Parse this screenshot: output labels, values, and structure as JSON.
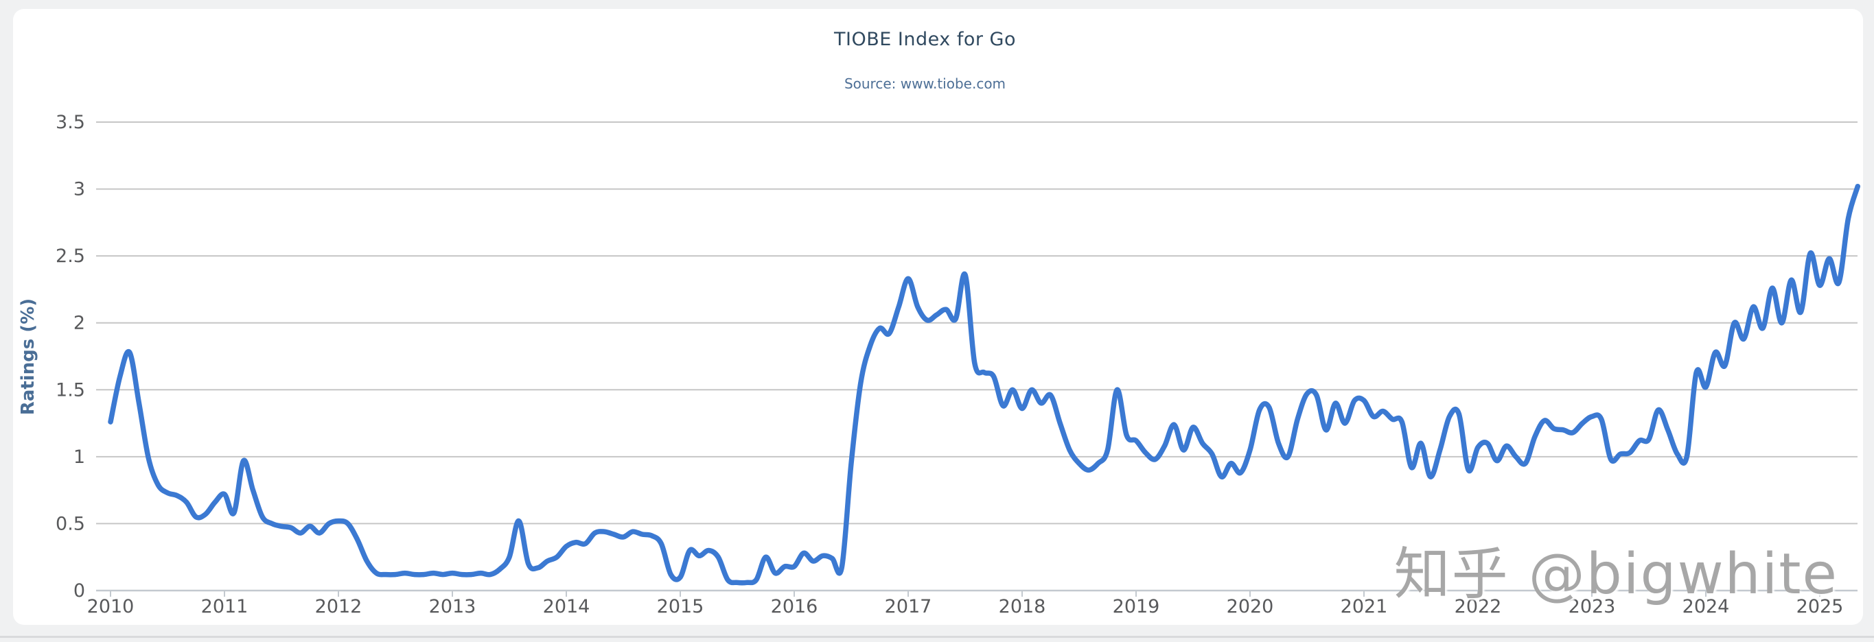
{
  "watermark": "知乎 @bigwhite",
  "chart_data": {
    "type": "line",
    "title": "TIOBE Index for Go",
    "subtitle": "Source: www.tiobe.com",
    "xlabel": "",
    "ylabel": "Ratings (%)",
    "legend": "none",
    "grid": true,
    "ylim": [
      0,
      3.5
    ],
    "xlim": [
      2009.87,
      2025.37
    ],
    "x_ticks": [
      2010,
      2011,
      2012,
      2013,
      2014,
      2015,
      2016,
      2017,
      2018,
      2019,
      2020,
      2021,
      2022,
      2023,
      2024,
      2025
    ],
    "y_ticks": [
      0,
      0.5,
      1,
      1.5,
      2,
      2.5,
      3,
      3.5
    ],
    "y_tick_labels": [
      "0",
      "0.5",
      "1",
      "1.5",
      "2",
      "2.5",
      "3",
      "3.5"
    ],
    "series": [
      {
        "name": "Go",
        "color": "#3b79d2",
        "start_year": 2010,
        "interval_months": 1,
        "values": [
          1.26,
          1.6,
          1.78,
          1.4,
          0.99,
          0.79,
          0.73,
          0.71,
          0.66,
          0.55,
          0.57,
          0.66,
          0.72,
          0.58,
          0.97,
          0.75,
          0.55,
          0.5,
          0.48,
          0.47,
          0.43,
          0.48,
          0.43,
          0.5,
          0.52,
          0.5,
          0.38,
          0.22,
          0.13,
          0.12,
          0.12,
          0.13,
          0.12,
          0.12,
          0.13,
          0.12,
          0.13,
          0.12,
          0.12,
          0.13,
          0.12,
          0.16,
          0.25,
          0.52,
          0.2,
          0.17,
          0.22,
          0.25,
          0.33,
          0.36,
          0.35,
          0.43,
          0.44,
          0.42,
          0.4,
          0.44,
          0.42,
          0.41,
          0.35,
          0.12,
          0.1,
          0.3,
          0.26,
          0.3,
          0.25,
          0.08,
          0.06,
          0.06,
          0.08,
          0.25,
          0.13,
          0.18,
          0.18,
          0.28,
          0.22,
          0.26,
          0.24,
          0.17,
          0.95,
          1.55,
          1.83,
          1.96,
          1.92,
          2.12,
          2.33,
          2.12,
          2.02,
          2.06,
          2.1,
          2.03,
          2.36,
          1.7,
          1.63,
          1.6,
          1.38,
          1.5,
          1.36,
          1.5,
          1.4,
          1.46,
          1.25,
          1.05,
          0.95,
          0.9,
          0.95,
          1.05,
          1.5,
          1.16,
          1.12,
          1.03,
          0.98,
          1.08,
          1.24,
          1.05,
          1.22,
          1.1,
          1.02,
          0.85,
          0.95,
          0.88,
          1.05,
          1.35,
          1.37,
          1.1,
          1.0,
          1.28,
          1.47,
          1.46,
          1.2,
          1.4,
          1.25,
          1.42,
          1.42,
          1.3,
          1.34,
          1.28,
          1.26,
          0.92,
          1.1,
          0.85,
          1.05,
          1.3,
          1.32,
          0.9,
          1.07,
          1.1,
          0.97,
          1.08,
          1.0,
          0.95,
          1.15,
          1.27,
          1.21,
          1.2,
          1.18,
          1.25,
          1.3,
          1.28,
          0.98,
          1.02,
          1.03,
          1.12,
          1.13,
          1.35,
          1.2,
          1.02,
          1.0,
          1.63,
          1.52,
          1.78,
          1.68,
          2.0,
          1.88,
          2.12,
          1.96,
          2.26,
          2.0,
          2.32,
          2.08,
          2.52,
          2.28,
          2.48,
          2.3,
          2.78,
          3.02
        ]
      }
    ]
  }
}
